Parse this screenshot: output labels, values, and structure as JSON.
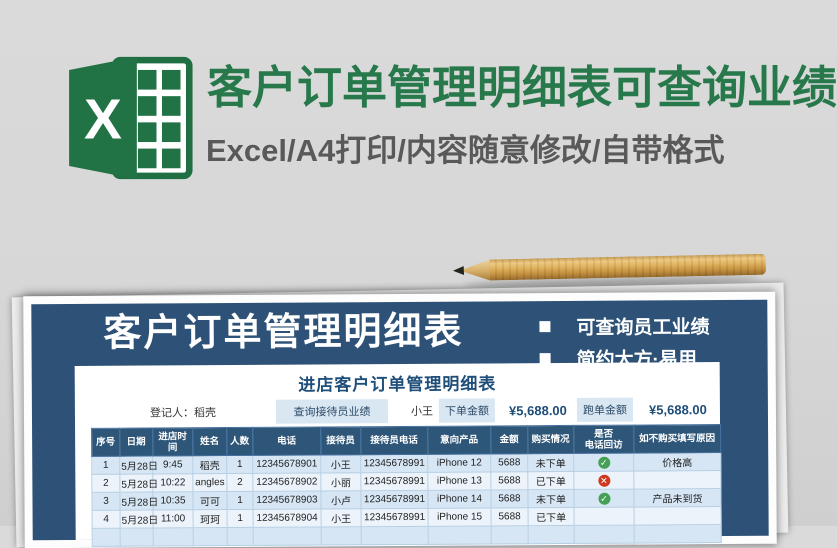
{
  "banner": {
    "title": "客户订单管理明细表可查询业绩",
    "subtitle": "Excel/A4打印/内容随意修改/自带格式",
    "excel_letter": "X",
    "colors": {
      "title_green": "#27794b",
      "subtitle_gray": "#595959",
      "excel_green": "#217346"
    }
  },
  "card": {
    "panel_title": "客户订单管理明细表",
    "bullet_marker": "■",
    "bullets": [
      "可查询员工业绩",
      "简约大方·易用"
    ],
    "colors": {
      "panel_blue": "#2e5277",
      "accent_blue": "#1f4e79"
    }
  },
  "sheet": {
    "title": "进店客户订单管理明细表",
    "registrant": "登记人：稻壳",
    "query_button_label": "查询接待员业绩",
    "query_value": "小王",
    "order_amount_label": "下单金额",
    "order_amount_value": "¥5,688.00",
    "lost_amount_label": "跑单金额",
    "lost_amount_value": "¥5,688.00",
    "status_colors": {
      "check_green": "#44a055",
      "cross_red": "#cf3a1f"
    },
    "table": {
      "headers": [
        "序号",
        "日期",
        "进店时间",
        "姓名",
        "人数",
        "电话",
        "接待员",
        "接待员电话",
        "意向产品",
        "金额",
        "购买情况",
        "是否\n电话回访",
        "如不购买填写原因"
      ],
      "rows": [
        [
          "1",
          "5月28日",
          "9:45",
          "稻壳",
          "1",
          "12345678901",
          "小王",
          "12345678991",
          "iPhone 12",
          "5688",
          "未下单",
          "check",
          "价格高"
        ],
        [
          "2",
          "5月28日",
          "10:22",
          "angles",
          "2",
          "12345678902",
          "小丽",
          "12345678991",
          "iPhone 13",
          "5688",
          "已下单",
          "cross",
          ""
        ],
        [
          "3",
          "5月28日",
          "10:35",
          "可可",
          "1",
          "12345678903",
          "小卢",
          "12345678991",
          "iPhone 14",
          "5688",
          "未下单",
          "check",
          "产品未到货"
        ],
        [
          "4",
          "5月28日",
          "11:00",
          "珂珂",
          "1",
          "12345678904",
          "小王",
          "12345678991",
          "iPhone 15",
          "5688",
          "已下单",
          "",
          ""
        ],
        [
          "",
          "",
          "",
          "",
          "",
          "",
          "",
          "",
          "",
          "",
          "",
          "",
          ""
        ]
      ]
    }
  }
}
